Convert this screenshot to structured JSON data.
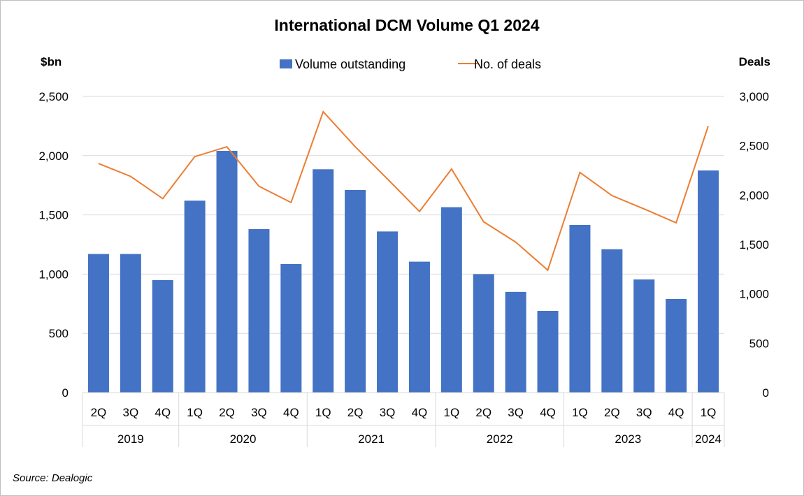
{
  "chart_data": {
    "type": "bar+line",
    "title": "International DCM Volume Q1 2024",
    "ylabel_left": "$bn",
    "ylabel_right": "Deals",
    "ylim_left": [
      0,
      2500
    ],
    "ylim_right": [
      0,
      3000
    ],
    "yticks_left": [
      "0",
      "500",
      "1,000",
      "1,500",
      "2,000",
      "2,500"
    ],
    "yticks_right": [
      "0",
      "500",
      "1,000",
      "1,500",
      "2,000",
      "2,500",
      "3,000"
    ],
    "grid": true,
    "legend_position": "top",
    "categories": [
      "2Q",
      "3Q",
      "4Q",
      "1Q",
      "2Q",
      "3Q",
      "4Q",
      "1Q",
      "2Q",
      "3Q",
      "4Q",
      "1Q",
      "2Q",
      "3Q",
      "4Q",
      "1Q",
      "2Q",
      "3Q",
      "4Q",
      "1Q"
    ],
    "year_groups": [
      {
        "label": "2019",
        "count": 3
      },
      {
        "label": "2020",
        "count": 4
      },
      {
        "label": "2021",
        "count": 4
      },
      {
        "label": "2022",
        "count": 4
      },
      {
        "label": "2023",
        "count": 4
      },
      {
        "label": "2024",
        "count": 1
      }
    ],
    "series": [
      {
        "name": "Volume outstanding",
        "type": "bar",
        "axis": "left",
        "color": "#4472c4",
        "values": [
          1170,
          1170,
          950,
          1620,
          2040,
          1380,
          1085,
          1885,
          1710,
          1360,
          1105,
          1565,
          1000,
          850,
          690,
          1415,
          1210,
          955,
          790,
          1875
        ]
      },
      {
        "name": "No. of deals",
        "type": "line",
        "axis": "right",
        "color": "#ed7d31",
        "values": [
          2320,
          2190,
          1965,
          2390,
          2490,
          2090,
          1925,
          2845,
          2490,
          2165,
          1835,
          2265,
          1730,
          1525,
          1240,
          2230,
          1995,
          1860,
          1720,
          2700
        ]
      }
    ]
  },
  "source": "Source: Dealogic"
}
